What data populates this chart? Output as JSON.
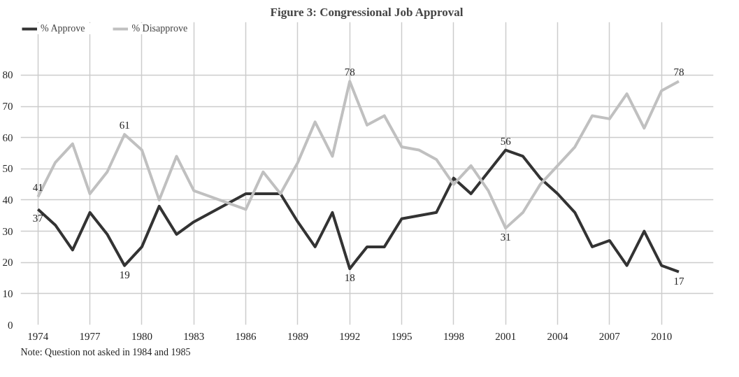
{
  "chart_data": {
    "type": "line",
    "title": "Figure 3: Congressional Job Approval",
    "x": [
      1974,
      1975,
      1976,
      1977,
      1978,
      1979,
      1980,
      1981,
      1982,
      1983,
      1986,
      1987,
      1988,
      1989,
      1990,
      1991,
      1992,
      1993,
      1994,
      1995,
      1996,
      1997,
      1998,
      1999,
      2000,
      2001,
      2002,
      2003,
      2004,
      2005,
      2006,
      2007,
      2008,
      2009,
      2010,
      2011
    ],
    "series": [
      {
        "name": "% Approve",
        "color": "#333333",
        "values": [
          37,
          32,
          24,
          36,
          29,
          19,
          25,
          38,
          29,
          33,
          42,
          42,
          42,
          33,
          25,
          36,
          18,
          25,
          25,
          34,
          35,
          36,
          47,
          42,
          49,
          56,
          54,
          47,
          42,
          36,
          25,
          27,
          19,
          30,
          19,
          17
        ]
      },
      {
        "name": "% Disapprove",
        "color": "#c0c0c0",
        "values": [
          41,
          52,
          58,
          42,
          49,
          61,
          56,
          40,
          54,
          43,
          37,
          49,
          42,
          52,
          65,
          54,
          78,
          64,
          67,
          57,
          56,
          53,
          45,
          51,
          43,
          31,
          36,
          45,
          51,
          57,
          67,
          66,
          74,
          63,
          75,
          78
        ]
      }
    ],
    "xlim": [
      1973,
      2013
    ],
    "xticks": [
      1974,
      1977,
      1980,
      1983,
      1986,
      1989,
      1992,
      1995,
      1998,
      2001,
      2004,
      2007,
      2010
    ],
    "ylim": [
      0,
      97
    ],
    "yticks": [
      0,
      10,
      20,
      30,
      40,
      50,
      60,
      70,
      80
    ],
    "grid": true,
    "legend": "top left",
    "marker": "none",
    "line_style": "solid",
    "annotations": [
      {
        "text": "41",
        "x": 1974,
        "y": 41
      },
      {
        "text": "37",
        "x": 1974,
        "y": 37
      },
      {
        "text": "61",
        "x": 1979,
        "y": 61
      },
      {
        "text": "19",
        "x": 1979,
        "y": 19
      },
      {
        "text": "78",
        "x": 1992,
        "y": 78
      },
      {
        "text": "18",
        "x": 1992,
        "y": 18
      },
      {
        "text": "56",
        "x": 2001,
        "y": 56
      },
      {
        "text": "31",
        "x": 2001,
        "y": 31
      },
      {
        "text": "78",
        "x": 2011,
        "y": 78
      },
      {
        "text": "17",
        "x": 2011,
        "y": 17
      },
      "Note: Question not asked in 1984 and 1985"
    ]
  }
}
